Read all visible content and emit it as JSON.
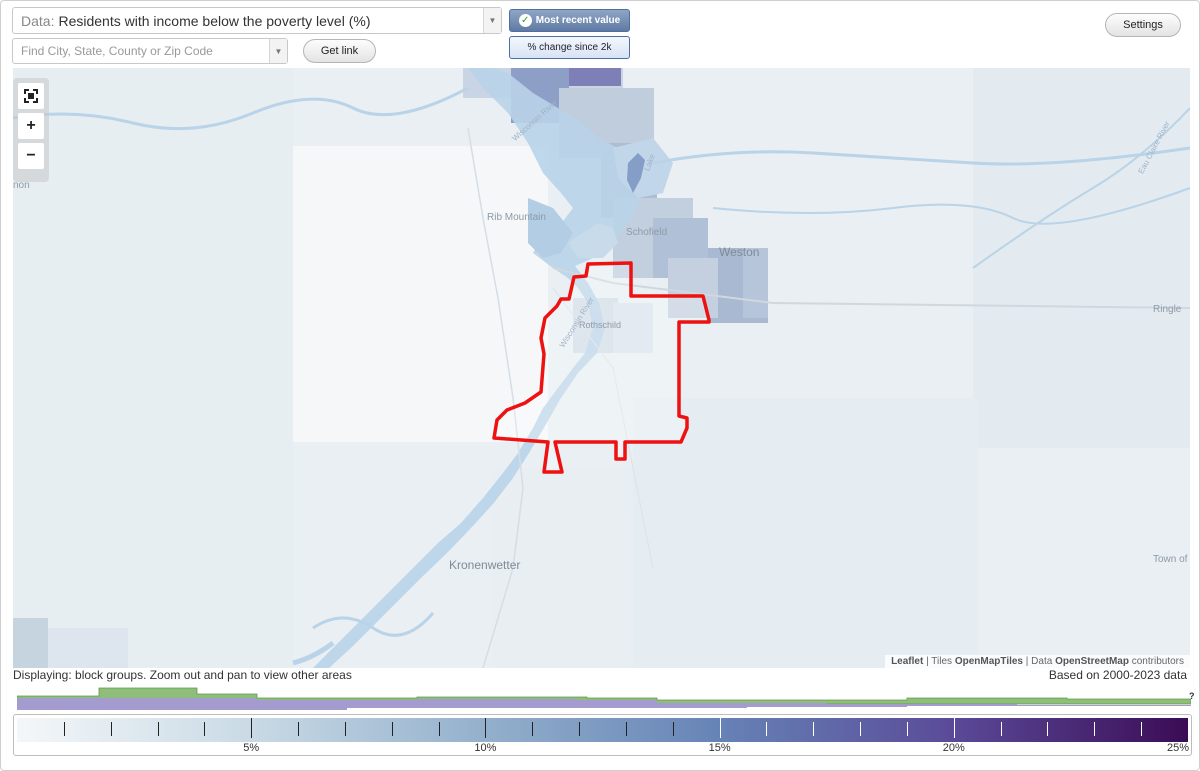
{
  "controls": {
    "data_prefix": "Data:",
    "data_value": "Residents with income below the poverty level (%)",
    "search_placeholder": "Find City, State, County or Zip Code",
    "get_link": "Get link",
    "settings": "Settings",
    "toggle_active": "Most recent value",
    "toggle_inactive": "% change since 2k"
  },
  "map": {
    "zoom_buttons": [
      "fullscreen",
      "+",
      "−"
    ],
    "place_labels": {
      "rib_mountain": "Rib Mountain",
      "schofield": "Schofield",
      "weston": "Weston",
      "rothschild": "Rothschild",
      "kronenwetter": "Kronenwetter",
      "ringle": "Ringle",
      "town_of": "Town of",
      "non": "non"
    },
    "river_labels": {
      "wisconsin_river_1": "Wisconsin River",
      "wisconsin_river_2": "Wisconsin River",
      "eau_claire_river": "Eau Claire River",
      "lake": "Lake"
    },
    "attribution": {
      "leaflet": "Leaflet",
      "sep": " | ",
      "tiles_prefix": "Tiles ",
      "tiles": "OpenMapTiles",
      "data_prefix": " | Data ",
      "osm": "OpenStreetMap",
      "contributors": " contributors"
    }
  },
  "status": {
    "displaying": "Displaying: block groups. Zoom out and pan to view other areas",
    "based_on": "Based on 2000-2023 data",
    "unknown_mark": "?"
  },
  "legend": {
    "min": 0,
    "max": 25,
    "tick_labels": [
      {
        "value": 5,
        "label": "5%"
      },
      {
        "value": 10,
        "label": "10%"
      },
      {
        "value": 15,
        "label": "15%"
      },
      {
        "value": 20,
        "label": "20%"
      },
      {
        "value": 25,
        "label": "25%"
      }
    ],
    "gradient_colors": [
      "#f4f7f9",
      "#c9dae5",
      "#93b0cc",
      "#6683b6",
      "#5a4a98",
      "#3b0c55"
    ]
  },
  "colors": {
    "highlight_outline": "#ee1111",
    "water": "#b9d3e8",
    "histogram_green": "#8fbe7a",
    "histogram_purple": "#a49bcf"
  }
}
